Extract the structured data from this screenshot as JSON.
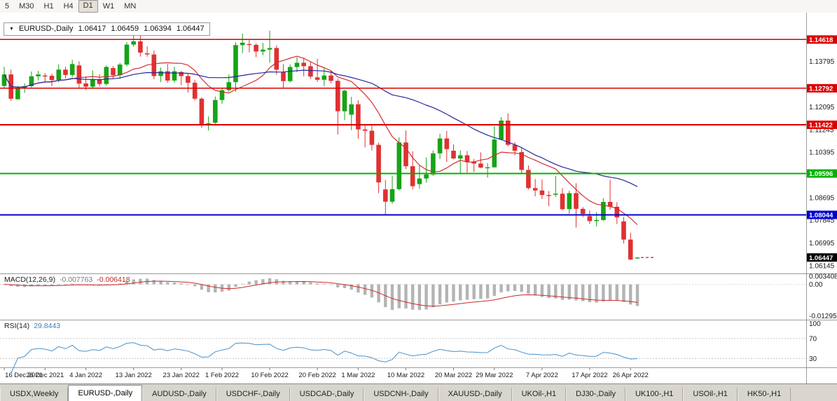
{
  "toolbar": {
    "periods": [
      {
        "label": "5",
        "active": false
      },
      {
        "label": "M30",
        "active": false
      },
      {
        "label": "H1",
        "active": false
      },
      {
        "label": "H4",
        "active": false
      },
      {
        "label": "D1",
        "active": true
      },
      {
        "label": "W1",
        "active": false
      },
      {
        "label": "MN",
        "active": false
      }
    ]
  },
  "chart": {
    "symbol": "EURUSD-,Daily",
    "open": "1.06417",
    "high": "1.06459",
    "low": "1.06394",
    "close": "1.06447"
  },
  "indicators": {
    "macd": {
      "name": "MACD(12,26,9)",
      "value_main": "-0.007763",
      "value_signal": "-0.006418"
    },
    "rsi": {
      "name": "RSI(14)",
      "value": "29.8443"
    }
  },
  "chart_data": {
    "type": "candlestick",
    "symbol": "EURUSD-",
    "timeframe": "Daily",
    "style": {
      "up_color": "#17a317",
      "down_color": "#e03131"
    },
    "price_axis": {
      "min": 1.0585,
      "max": 1.1505,
      "labels": [
        {
          "v": 1.13795,
          "t": "1.13795"
        },
        {
          "v": 1.12095,
          "t": "1.12095"
        },
        {
          "v": 1.11245,
          "t": "1.11245"
        },
        {
          "v": 1.10395,
          "t": "1.10395"
        },
        {
          "v": 1.08695,
          "t": "1.08695"
        },
        {
          "v": 1.07845,
          "t": "1.07845"
        },
        {
          "v": 1.06995,
          "t": "1.06995"
        },
        {
          "v": 1.06145,
          "t": "1.06145"
        }
      ]
    },
    "hlines": [
      {
        "price": 1.14618,
        "color": "#dd0000",
        "label": "1.14618"
      },
      {
        "price": 1.12792,
        "color": "#dd0000",
        "label": "1.12792"
      },
      {
        "price": 1.11422,
        "color": "#dd0000",
        "label": "1.11422"
      },
      {
        "price": 1.09596,
        "color": "#00b400",
        "label": "1.09596"
      },
      {
        "price": 1.08044,
        "color": "#0000d0",
        "label": "1.08044"
      }
    ],
    "current_price": {
      "price": 1.06447,
      "label": "1.06447",
      "color": "#000000"
    },
    "overlays": [
      {
        "name": "ma-fast-line",
        "type": "sma",
        "period": 10,
        "color": "#d32f2f"
      },
      {
        "name": "ma-slow-line",
        "type": "sma",
        "period": 30,
        "color": "#26269c"
      }
    ],
    "macd": {
      "fast": 12,
      "slow": 26,
      "signal": 9,
      "range": [
        -0.0145,
        0.0045
      ],
      "histogram_color": "#b4b4b4",
      "signal_color": "#cc2a2a",
      "axis": [
        {
          "v": 0.003408,
          "t": "0.003408"
        },
        {
          "v": 0,
          "t": "0.00"
        },
        {
          "v": -0.012958,
          "t": "-0.012958"
        }
      ]
    },
    "rsi": {
      "period": 14,
      "color": "#4a90c8",
      "scale_min": 12,
      "scale_max": 108,
      "levels": [
        70,
        30
      ],
      "axis": [
        {
          "v": 100,
          "t": "100"
        },
        {
          "v": 70,
          "t": "70"
        },
        {
          "v": 30,
          "t": "30"
        }
      ]
    },
    "dates": [
      {
        "label": "16 Dec 2021",
        "i": 0
      },
      {
        "label": "26 Dec 2021",
        "i": 6
      },
      {
        "label": "4 Jan 2022",
        "i": 12
      },
      {
        "label": "13 Jan 2022",
        "i": 19
      },
      {
        "label": "23 Jan 2022",
        "i": 26
      },
      {
        "label": "1 Feb 2022",
        "i": 32
      },
      {
        "label": "10 Feb 2022",
        "i": 39
      },
      {
        "label": "20 Feb 2022",
        "i": 46
      },
      {
        "label": "1 Mar 2022",
        "i": 52
      },
      {
        "label": "10 Mar 2022",
        "i": 59
      },
      {
        "label": "20 Mar 2022",
        "i": 66
      },
      {
        "label": "29 Mar 2022",
        "i": 72
      },
      {
        "label": "7 Apr 2022",
        "i": 79
      },
      {
        "label": "17 Apr 2022",
        "i": 86
      },
      {
        "label": "26 Apr 2022",
        "i": 92
      }
    ],
    "candles": [
      [
        1.1288,
        1.136,
        1.128,
        1.1331
      ],
      [
        1.1331,
        1.1349,
        1.1232,
        1.124
      ],
      [
        1.1238,
        1.1288,
        1.1237,
        1.128
      ],
      [
        1.128,
        1.1298,
        1.1262,
        1.1287
      ],
      [
        1.1287,
        1.1342,
        1.1282,
        1.1324
      ],
      [
        1.1324,
        1.1344,
        1.1308,
        1.1331
      ],
      [
        1.1327,
        1.1336,
        1.1305,
        1.1326
      ],
      [
        1.1326,
        1.1333,
        1.1287,
        1.131
      ],
      [
        1.131,
        1.1369,
        1.1301,
        1.1349
      ],
      [
        1.1349,
        1.136,
        1.1316,
        1.1329
      ],
      [
        1.1329,
        1.1386,
        1.1321,
        1.137
      ],
      [
        1.1365,
        1.138,
        1.128,
        1.1297
      ],
      [
        1.1297,
        1.1324,
        1.1272,
        1.1285
      ],
      [
        1.1285,
        1.1346,
        1.1277,
        1.1313
      ],
      [
        1.1313,
        1.1332,
        1.1285,
        1.1295
      ],
      [
        1.1295,
        1.1365,
        1.1289,
        1.1359
      ],
      [
        1.1355,
        1.1362,
        1.1313,
        1.1328
      ],
      [
        1.1328,
        1.1374,
        1.1314,
        1.1368
      ],
      [
        1.1368,
        1.1453,
        1.1361,
        1.1443
      ],
      [
        1.1443,
        1.1482,
        1.1435,
        1.1455
      ],
      [
        1.1455,
        1.1483,
        1.1398,
        1.1413
      ],
      [
        1.141,
        1.1436,
        1.1397,
        1.1406
      ],
      [
        1.1406,
        1.142,
        1.1313,
        1.1325
      ],
      [
        1.1325,
        1.1357,
        1.1302,
        1.1343
      ],
      [
        1.1343,
        1.137,
        1.13,
        1.1308
      ],
      [
        1.1308,
        1.136,
        1.13,
        1.1343
      ],
      [
        1.134,
        1.1344,
        1.1291,
        1.1325
      ],
      [
        1.1325,
        1.1334,
        1.1263,
        1.13
      ],
      [
        1.13,
        1.131,
        1.1234,
        1.124
      ],
      [
        1.124,
        1.1245,
        1.1131,
        1.1143
      ],
      [
        1.1143,
        1.1174,
        1.1121,
        1.1148
      ],
      [
        1.115,
        1.1248,
        1.1141,
        1.1235
      ],
      [
        1.1235,
        1.1279,
        1.1221,
        1.1272
      ],
      [
        1.1272,
        1.1331,
        1.1266,
        1.1302
      ],
      [
        1.1302,
        1.1452,
        1.1266,
        1.1441
      ],
      [
        1.1441,
        1.1484,
        1.1411,
        1.145
      ],
      [
        1.1445,
        1.146,
        1.1414,
        1.1442
      ],
      [
        1.1442,
        1.1448,
        1.1396,
        1.1417
      ],
      [
        1.1417,
        1.1449,
        1.1403,
        1.1424
      ],
      [
        1.1424,
        1.1495,
        1.1375,
        1.143
      ],
      [
        1.143,
        1.144,
        1.133,
        1.1349
      ],
      [
        1.134,
        1.137,
        1.1278,
        1.1306
      ],
      [
        1.1306,
        1.1368,
        1.1301,
        1.1359
      ],
      [
        1.1359,
        1.1396,
        1.134,
        1.1375
      ],
      [
        1.1375,
        1.1394,
        1.1324,
        1.1362
      ],
      [
        1.1362,
        1.138,
        1.1315,
        1.1323
      ],
      [
        1.132,
        1.139,
        1.1303,
        1.1311
      ],
      [
        1.1311,
        1.1357,
        1.1287,
        1.1327
      ],
      [
        1.1327,
        1.1343,
        1.1298,
        1.1307
      ],
      [
        1.1307,
        1.1315,
        1.1106,
        1.1193
      ],
      [
        1.1193,
        1.1274,
        1.116,
        1.127
      ],
      [
        1.118,
        1.1247,
        1.1122,
        1.1219
      ],
      [
        1.1219,
        1.1234,
        1.109,
        1.1125
      ],
      [
        1.1125,
        1.1145,
        1.1058,
        1.112
      ],
      [
        1.112,
        1.1139,
        1.1046,
        1.1067
      ],
      [
        1.1067,
        1.1075,
        1.0886,
        1.0926
      ],
      [
        1.09,
        1.0935,
        1.0806,
        1.0854
      ],
      [
        1.0854,
        1.095,
        1.0846,
        1.0901
      ],
      [
        1.0901,
        1.1096,
        1.0896,
        1.1076
      ],
      [
        1.1076,
        1.1121,
        1.0976,
        1.0987
      ],
      [
        1.0987,
        1.1043,
        1.0901,
        1.0912
      ],
      [
        1.092,
        1.0992,
        1.0903,
        1.0941
      ],
      [
        1.0941,
        1.102,
        1.0925,
        1.0956
      ],
      [
        1.0956,
        1.1046,
        1.095,
        1.1035
      ],
      [
        1.1035,
        1.1109,
        1.1014,
        1.1091
      ],
      [
        1.1091,
        1.1119,
        1.1003,
        1.1051
      ],
      [
        1.1045,
        1.1069,
        1.1013,
        1.1016
      ],
      [
        1.1016,
        1.1046,
        1.0961,
        1.1028
      ],
      [
        1.1028,
        1.1044,
        1.0963,
        1.1004
      ],
      [
        1.1004,
        1.1014,
        1.0966,
        1.0997
      ],
      [
        1.0997,
        1.1039,
        1.0979,
        1.0982
      ],
      [
        1.098,
        1.0999,
        1.0944,
        1.0983
      ],
      [
        1.0983,
        1.1137,
        1.0981,
        1.1087
      ],
      [
        1.1087,
        1.1171,
        1.1084,
        1.1158
      ],
      [
        1.1158,
        1.1185,
        1.1061,
        1.1067
      ],
      [
        1.1067,
        1.1077,
        1.1028,
        1.1045
      ],
      [
        1.104,
        1.1055,
        1.096,
        1.0973
      ],
      [
        1.0973,
        1.099,
        1.0899,
        1.0905
      ],
      [
        1.0905,
        1.0939,
        1.0874,
        1.0896
      ],
      [
        1.0896,
        1.0937,
        1.0864,
        1.0879
      ],
      [
        1.0879,
        1.0894,
        1.0837,
        1.0876
      ],
      [
        1.088,
        1.095,
        1.0872,
        1.0884
      ],
      [
        1.0884,
        1.0905,
        1.0821,
        1.0826
      ],
      [
        1.0826,
        1.0895,
        1.0809,
        1.0886
      ],
      [
        1.0886,
        1.0923,
        1.0757,
        1.0827
      ],
      [
        1.0827,
        1.0834,
        1.0796,
        1.0808
      ],
      [
        1.08,
        1.0821,
        1.077,
        1.0781
      ],
      [
        1.0781,
        1.0815,
        1.0761,
        1.0785
      ],
      [
        1.0785,
        1.0867,
        1.0782,
        1.0853
      ],
      [
        1.0853,
        1.0936,
        1.0824,
        1.0835
      ],
      [
        1.0835,
        1.0852,
        1.077,
        1.0795
      ],
      [
        1.078,
        1.0797,
        1.0697,
        1.0712
      ],
      [
        1.0712,
        1.0738,
        1.0635,
        1.0637
      ],
      [
        1.06417,
        1.06459,
        1.06394,
        1.06447
      ]
    ]
  },
  "tabs": [
    {
      "label": "USDX,Weekly",
      "active": false
    },
    {
      "label": "EURUSD-,Daily",
      "active": true
    },
    {
      "label": "AUDUSD-,Daily",
      "active": false
    },
    {
      "label": "USDCHF-,Daily",
      "active": false
    },
    {
      "label": "USDCAD-,Daily",
      "active": false
    },
    {
      "label": "USDCNH-,Daily",
      "active": false
    },
    {
      "label": "XAUUSD-,Daily",
      "active": false
    },
    {
      "label": "UKOil-,H1",
      "active": false
    },
    {
      "label": "DJ30-,Daily",
      "active": false
    },
    {
      "label": "UK100-,H1",
      "active": false
    },
    {
      "label": "USOil-,H1",
      "active": false
    },
    {
      "label": "HK50-,H1",
      "active": false
    }
  ]
}
